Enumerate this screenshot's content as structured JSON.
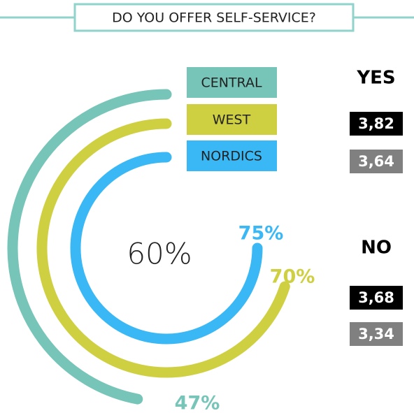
{
  "chart_data": {
    "type": "radial_bar",
    "title": "DO YOU OFFER SELF-SERVICE?",
    "center_value": {
      "value": 60,
      "label": "60%"
    },
    "series": [
      {
        "name": "CENTRAL",
        "color": "#76c5b8",
        "values": [
          47
        ],
        "value_labels": [
          "47%"
        ]
      },
      {
        "name": "WEST",
        "color": "#cfd041",
        "values": [
          70
        ],
        "value_labels": [
          "70%"
        ]
      },
      {
        "name": "NORDICS",
        "color": "#3ab8f5",
        "values": [
          75
        ],
        "value_labels": [
          "75%"
        ]
      }
    ],
    "groups": [
      {
        "name": "YES",
        "values": [
          3.82,
          3.64
        ],
        "value_labels": [
          "3,82",
          "3,64"
        ],
        "colors": [
          "#000000",
          "#808080"
        ]
      },
      {
        "name": "NO",
        "values": [
          3.68,
          3.34
        ],
        "value_labels": [
          "3,68",
          "3,34"
        ],
        "colors": [
          "#000000",
          "#808080"
        ]
      }
    ]
  }
}
